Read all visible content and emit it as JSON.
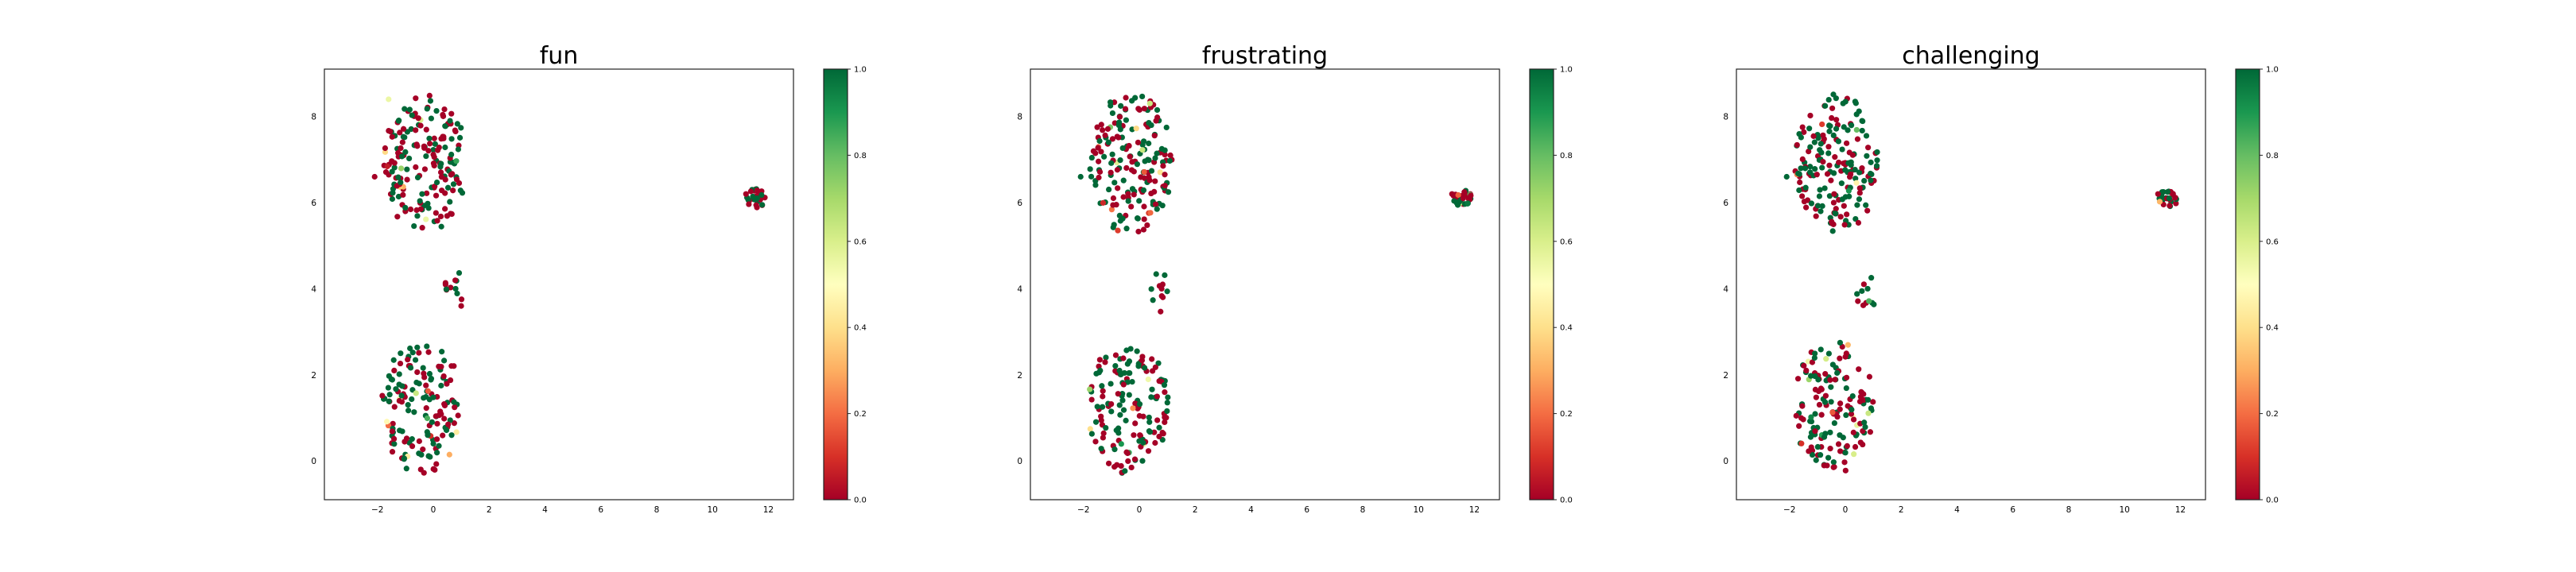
{
  "colors": {
    "low": "#a50026",
    "high": "#006837",
    "colormap": [
      "#a50026",
      "#d73027",
      "#f46d43",
      "#fdae61",
      "#fee08b",
      "#ffffbf",
      "#d9ef8b",
      "#a6d96a",
      "#66bd63",
      "#1a9850",
      "#006837"
    ]
  },
  "chart_data": [
    {
      "type": "scatter",
      "title": "fun",
      "xlabel": "",
      "ylabel": "",
      "xlim": [
        -3.9,
        12.9
      ],
      "ylim": [
        -0.9,
        9.1
      ],
      "xticks": [
        -2,
        0,
        2,
        4,
        6,
        8,
        10,
        12
      ],
      "yticks": [
        0,
        2,
        4,
        6,
        8
      ],
      "grid": false,
      "colorbar": {
        "colormap": "RdYlGn",
        "range": [
          0,
          1
        ],
        "ticks": [
          "0.0",
          "0.2",
          "0.4",
          "0.6",
          "0.8",
          "1.0"
        ]
      },
      "seed": 11,
      "points": [
        {
          "x": -1.1,
          "y": 7.4,
          "value": 0.0
        },
        {
          "x": -0.4,
          "y": 6.2,
          "value": 1.0
        },
        {
          "x": -2.1,
          "y": 6.6,
          "value": 0.0
        },
        {
          "x": 0.6,
          "y": 7.9,
          "value": 1.0
        },
        {
          "x": -1.4,
          "y": 2.1,
          "value": 0.0
        },
        {
          "x": -0.2,
          "y": 0.6,
          "value": 1.0
        },
        {
          "x": 11.6,
          "y": 6.1,
          "value": 1.0
        },
        {
          "x": 11.2,
          "y": 6.2,
          "value": 0.0
        },
        {
          "x": 0.8,
          "y": 4.0,
          "value": 1.0
        },
        {
          "x": 1.0,
          "y": 3.6,
          "value": 0.0
        },
        {
          "x": -1.6,
          "y": 8.4,
          "value": 0.55
        }
      ]
    },
    {
      "type": "scatter",
      "title": "frustrating",
      "xlabel": "",
      "ylabel": "",
      "xlim": [
        -3.9,
        12.9
      ],
      "ylim": [
        -0.9,
        9.1
      ],
      "xticks": [
        -2,
        0,
        2,
        4,
        6,
        8,
        10,
        12
      ],
      "yticks": [
        0,
        2,
        4,
        6,
        8
      ],
      "grid": false,
      "colorbar": {
        "colormap": "RdYlGn",
        "range": [
          0,
          1
        ],
        "ticks": [
          "0.0",
          "0.2",
          "0.4",
          "0.6",
          "0.8",
          "1.0"
        ]
      },
      "seed": 23,
      "points": [
        {
          "x": -1.1,
          "y": 7.4,
          "value": 1.0
        },
        {
          "x": -0.4,
          "y": 6.2,
          "value": 0.0
        },
        {
          "x": -2.1,
          "y": 6.6,
          "value": 1.0
        },
        {
          "x": 0.6,
          "y": 7.9,
          "value": 0.0
        },
        {
          "x": -1.4,
          "y": 2.1,
          "value": 1.0
        },
        {
          "x": -0.2,
          "y": 0.6,
          "value": 0.0
        },
        {
          "x": 11.6,
          "y": 6.1,
          "value": 0.0
        },
        {
          "x": 11.2,
          "y": 6.2,
          "value": 0.0
        },
        {
          "x": 0.8,
          "y": 4.0,
          "value": 0.0
        }
      ]
    },
    {
      "type": "scatter",
      "title": "challenging",
      "xlabel": "",
      "ylabel": "",
      "xlim": [
        -3.9,
        12.9
      ],
      "ylim": [
        -0.9,
        9.1
      ],
      "xticks": [
        -2,
        0,
        2,
        4,
        6,
        8,
        10,
        12
      ],
      "yticks": [
        0,
        2,
        4,
        6,
        8
      ],
      "grid": false,
      "colorbar": {
        "colormap": "RdYlGn",
        "range": [
          0,
          1
        ],
        "ticks": [
          "0.0",
          "0.2",
          "0.4",
          "0.6",
          "0.8",
          "1.0"
        ]
      },
      "seed": 37,
      "points": [
        {
          "x": -1.1,
          "y": 7.4,
          "value": 1.0
        },
        {
          "x": -0.4,
          "y": 6.2,
          "value": 0.0
        },
        {
          "x": -2.1,
          "y": 6.6,
          "value": 1.0
        },
        {
          "x": 0.6,
          "y": 7.9,
          "value": 1.0
        },
        {
          "x": -1.4,
          "y": 2.1,
          "value": 0.0
        },
        {
          "x": -0.2,
          "y": 0.6,
          "value": 1.0
        },
        {
          "x": 11.6,
          "y": 6.1,
          "value": 1.0
        },
        {
          "x": 11.2,
          "y": 6.2,
          "value": 0.0
        },
        {
          "x": 0.8,
          "y": 4.0,
          "value": 1.0
        }
      ]
    }
  ]
}
